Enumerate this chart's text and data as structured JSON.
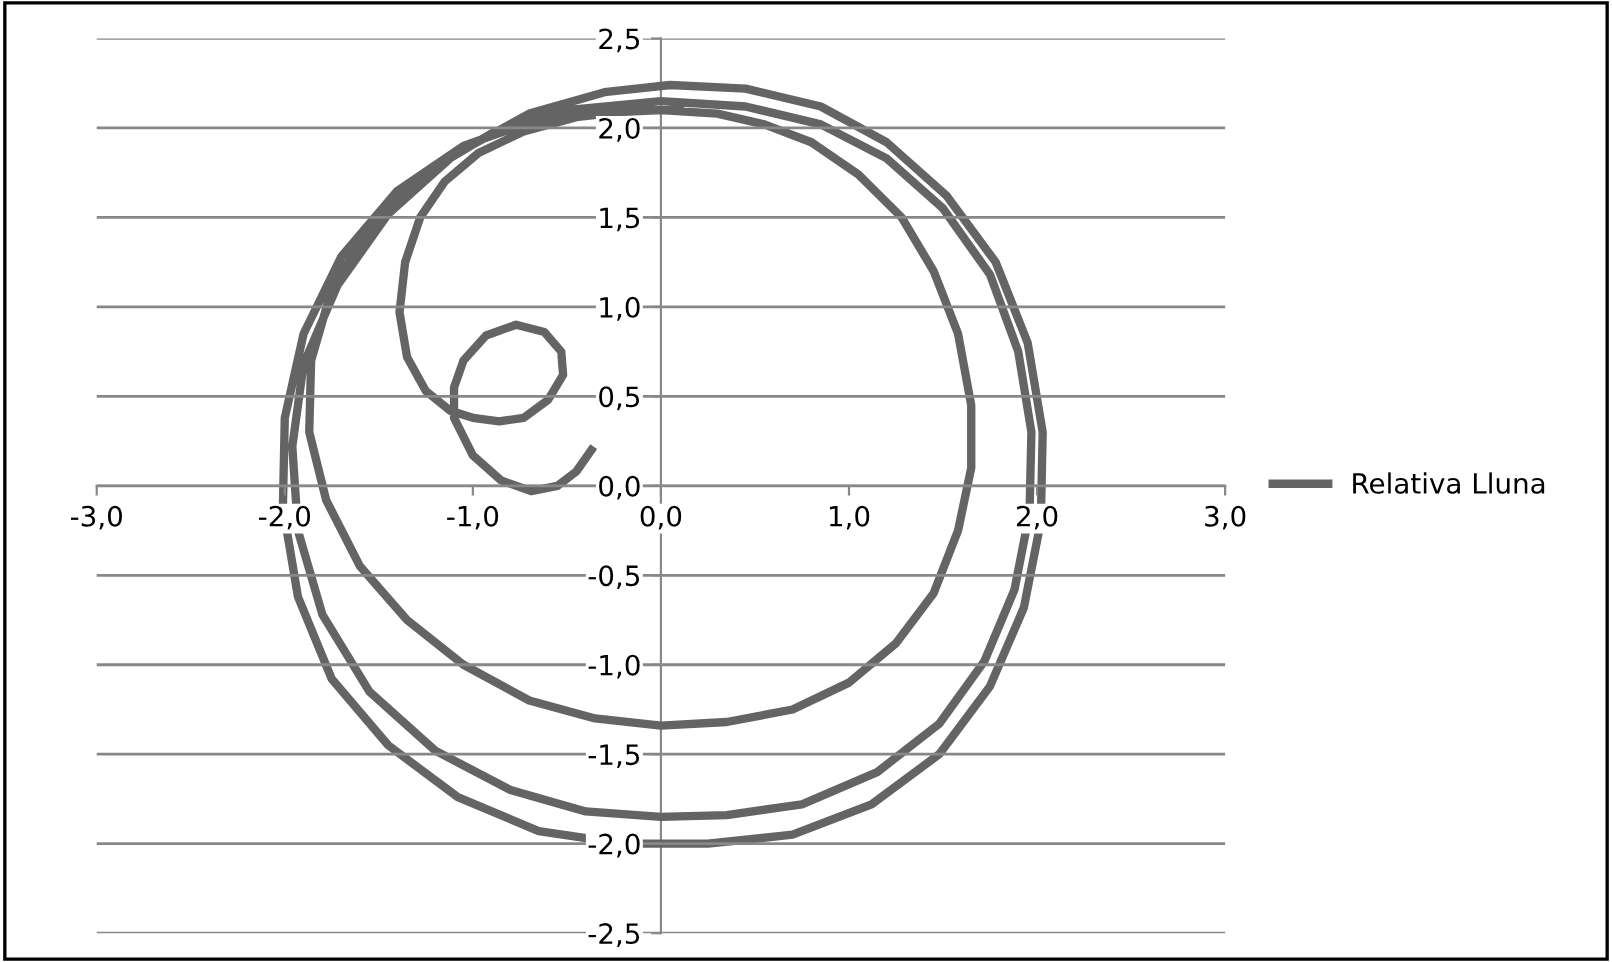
{
  "chart_data": {
    "type": "line",
    "xlim": [
      -3,
      3
    ],
    "ylim": [
      -2.5,
      2.5
    ],
    "xticks": [
      {
        "value": -3,
        "label": "-3,0"
      },
      {
        "value": -2,
        "label": "-2,0"
      },
      {
        "value": -1,
        "label": "-1,0"
      },
      {
        "value": 0,
        "label": "0,0"
      },
      {
        "value": 1,
        "label": "1,0"
      },
      {
        "value": 2,
        "label": "2,0"
      },
      {
        "value": 3,
        "label": "3,0"
      }
    ],
    "yticks": [
      {
        "value": -2.5,
        "label": "-2,5"
      },
      {
        "value": -2,
        "label": "-2,0"
      },
      {
        "value": -1.5,
        "label": "-1,5"
      },
      {
        "value": -1,
        "label": "-1,0"
      },
      {
        "value": -0.5,
        "label": "-0,5"
      },
      {
        "value": 0,
        "label": "0,0"
      },
      {
        "value": 0.5,
        "label": "0,5"
      },
      {
        "value": 1,
        "label": "1,0"
      },
      {
        "value": 1.5,
        "label": "1,5"
      },
      {
        "value": 2,
        "label": "2,0"
      },
      {
        "value": 2.5,
        "label": "2,5"
      }
    ],
    "grid": "y",
    "legend": "right",
    "marker": "none",
    "line_style": "solid",
    "series": [
      {
        "name": "Relativa Lluna",
        "color": "#646464",
        "x": [
          -0.37,
          -0.45,
          -0.55,
          -0.69,
          -0.85,
          -1.0,
          -1.1,
          -1.1,
          -1.05,
          -0.93,
          -0.77,
          -0.62,
          -0.53,
          -0.52,
          -0.6,
          -0.73,
          -0.86,
          -1.0,
          -1.12,
          -1.25,
          -1.35,
          -1.39,
          -1.36,
          -1.28,
          -1.15,
          -0.97,
          -0.73,
          -0.45,
          -0.2,
          0,
          0.3,
          0.55,
          0.8,
          1.05,
          1.28,
          1.45,
          1.58,
          1.65,
          1.65,
          1.58,
          1.45,
          1.25,
          1.0,
          0.7,
          0.35,
          0,
          -0.35,
          -0.7,
          -1.05,
          -1.35,
          -1.6,
          -1.78,
          -1.87,
          -1.86,
          -1.75,
          -1.55,
          -1.25,
          -0.9,
          -0.5,
          0,
          0.45,
          0.85,
          1.2,
          1.5,
          1.75,
          1.9,
          1.97,
          1.96,
          1.88,
          1.72,
          1.48,
          1.15,
          0.75,
          0.35,
          0,
          -0.4,
          -0.8,
          -1.2,
          -1.55,
          -1.8,
          -1.93,
          -1.96,
          -1.9,
          -1.72,
          -1.45,
          -1.1,
          -0.7,
          -0.3,
          0.05,
          0.45,
          0.85,
          1.2,
          1.52,
          1.78,
          1.95,
          2.03,
          2.02,
          1.93,
          1.75,
          1.48,
          1.12,
          0.7,
          0.25,
          -0.2,
          -0.65,
          -1.08,
          -1.45,
          -1.75,
          -1.93,
          -2.01,
          -2.0,
          -1.9,
          -1.7,
          -1.4,
          -1.05,
          -0.65,
          -0.25,
          0.1
        ],
        "values": [
          0.2,
          0.08,
          0.0,
          -0.03,
          0.03,
          0.17,
          0.38,
          0.55,
          0.7,
          0.84,
          0.9,
          0.86,
          0.75,
          0.62,
          0.48,
          0.38,
          0.36,
          0.38,
          0.42,
          0.53,
          0.72,
          0.97,
          1.25,
          1.5,
          1.7,
          1.86,
          1.98,
          2.06,
          2.09,
          2.1,
          2.08,
          2.02,
          1.92,
          1.74,
          1.5,
          1.2,
          0.85,
          0.45,
          0.1,
          -0.25,
          -0.6,
          -0.88,
          -1.1,
          -1.25,
          -1.32,
          -1.34,
          -1.3,
          -1.2,
          -1.0,
          -0.75,
          -0.45,
          -0.08,
          0.3,
          0.7,
          1.1,
          1.45,
          1.75,
          1.97,
          2.1,
          2.15,
          2.12,
          2.02,
          1.83,
          1.55,
          1.18,
          0.75,
          0.3,
          -0.15,
          -0.58,
          -0.98,
          -1.33,
          -1.6,
          -1.78,
          -1.84,
          -1.85,
          -1.82,
          -1.7,
          -1.48,
          -1.15,
          -0.72,
          -0.25,
          0.22,
          0.68,
          1.12,
          1.52,
          1.85,
          2.08,
          2.2,
          2.24,
          2.22,
          2.12,
          1.92,
          1.62,
          1.25,
          0.8,
          0.3,
          -0.2,
          -0.68,
          -1.12,
          -1.5,
          -1.78,
          -1.95,
          -2.0,
          -2.0,
          -1.93,
          -1.74,
          -1.45,
          -1.08,
          -0.62,
          -0.12,
          0.38,
          0.85,
          1.28,
          1.65,
          1.9,
          2.05,
          2.1,
          2.1
        ]
      }
    ]
  }
}
